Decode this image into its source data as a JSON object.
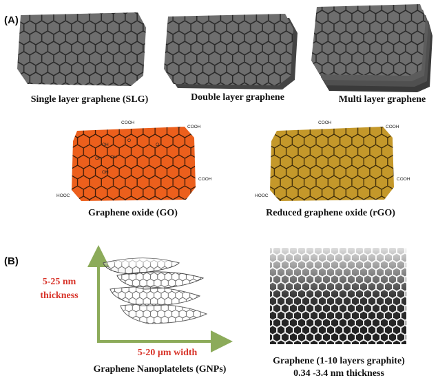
{
  "panel_a": {
    "label": "(A)",
    "captions": [
      "Single layer graphene (SLG)",
      "Double layer graphene",
      "Multi layer graphene",
      "Graphene oxide (GO)",
      "Reduced graphene oxide (rGO)"
    ],
    "go_groups": [
      "COOH",
      "COOH",
      "OH",
      "O",
      "OH",
      "OH",
      "OH",
      "O",
      "COOH",
      "HOOC"
    ],
    "rgo_groups": [
      "COOH",
      "COOH",
      "COOH",
      "HOOC"
    ]
  },
  "panel_b": {
    "label": "(B)",
    "thickness": [
      "5-25 nm",
      "thickness"
    ],
    "width": "5-20 µm width",
    "gnp_caption": "Graphene Nanoplatelets (GNPs)",
    "graphene_caption": [
      "Graphene (1-10 layers graphite)",
      "0.34 -3.4 nm thickness"
    ]
  }
}
